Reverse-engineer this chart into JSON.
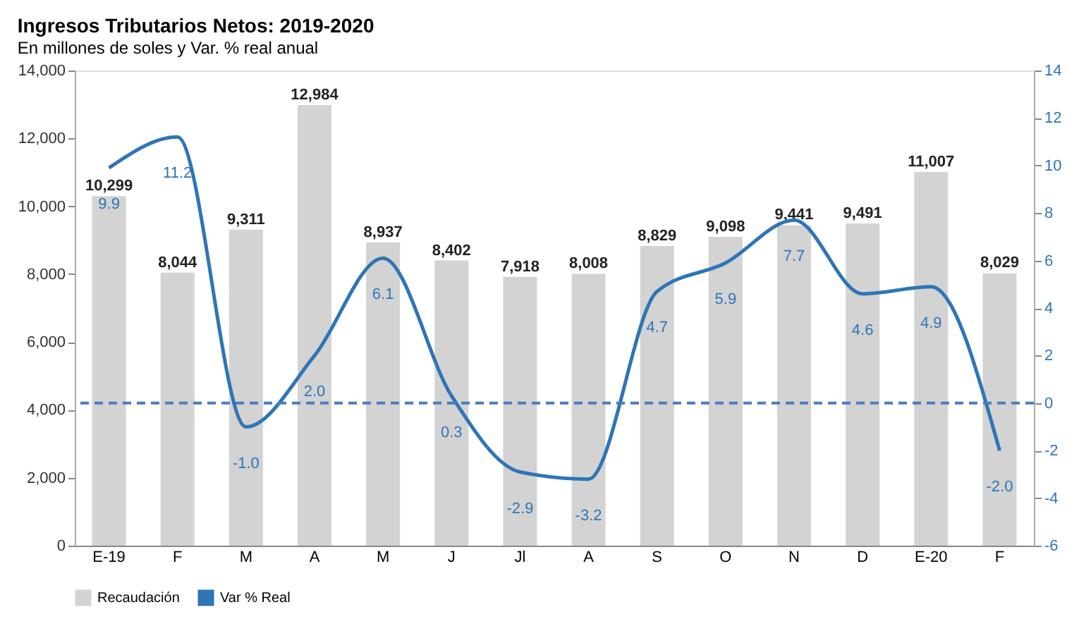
{
  "chart_data": {
    "type": "bar",
    "title": "Ingresos Tributarios Netos: 2019-2020",
    "subtitle": "En millones de soles y Var. % real anual",
    "categories": [
      "E-19",
      "F",
      "M",
      "A",
      "M",
      "J",
      "Jl",
      "A",
      "S",
      "O",
      "N",
      "D",
      "E-20",
      "F"
    ],
    "series": [
      {
        "name": "Recaudación",
        "color": "#d3d3d3",
        "values": [
          10299,
          8044,
          9311,
          12984,
          8937,
          8402,
          7918,
          8008,
          8829,
          9098,
          9441,
          9491,
          11007,
          8029
        ],
        "value_labels": [
          "10,299",
          "8,044",
          "9,311",
          "12,984",
          "8,937",
          "8,402",
          "7,918",
          "8,008",
          "8,829",
          "9,098",
          "9,441",
          "9,491",
          "11,007",
          "8,029"
        ]
      },
      {
        "name": "Var % Real",
        "type": "line",
        "axis": "y2",
        "color": "#2e75b6",
        "values": [
          9.9,
          11.2,
          -1.0,
          2.0,
          6.1,
          0.3,
          -2.9,
          -3.2,
          4.7,
          5.9,
          7.7,
          4.6,
          4.9,
          -2.0
        ],
        "value_labels": [
          "9.9",
          "11.2",
          "-1.0",
          "2.0",
          "6.1",
          "0.3",
          "-2.9",
          "-3.2",
          "4.7",
          "5.9",
          "7.7",
          "4.6",
          "4.9",
          "-2.0"
        ]
      }
    ],
    "ylim": [
      0,
      14000
    ],
    "yticks": [
      0,
      {
        "value": 2000,
        "label": "2,000"
      },
      {
        "value": 4000,
        "label": "4,000"
      },
      {
        "value": 6000,
        "label": "6,000"
      },
      {
        "value": 8000,
        "label": "8,000"
      },
      {
        "value": 10000,
        "label": "10,000"
      },
      {
        "value": 12000,
        "label": "12,000"
      },
      {
        "value": 14000,
        "label": "14,000"
      }
    ],
    "y2lim": [
      -6,
      14
    ],
    "y2ticks": [
      -6,
      -4,
      -2,
      0,
      2,
      4,
      6,
      8,
      10,
      12,
      14
    ],
    "ref_lines": [
      {
        "axis": "y2",
        "value": 0,
        "color": "#4a7ebb",
        "line_style": "dashed"
      }
    ],
    "grid": false,
    "legend": "bottom",
    "marker": "none",
    "line_style": "solid"
  }
}
